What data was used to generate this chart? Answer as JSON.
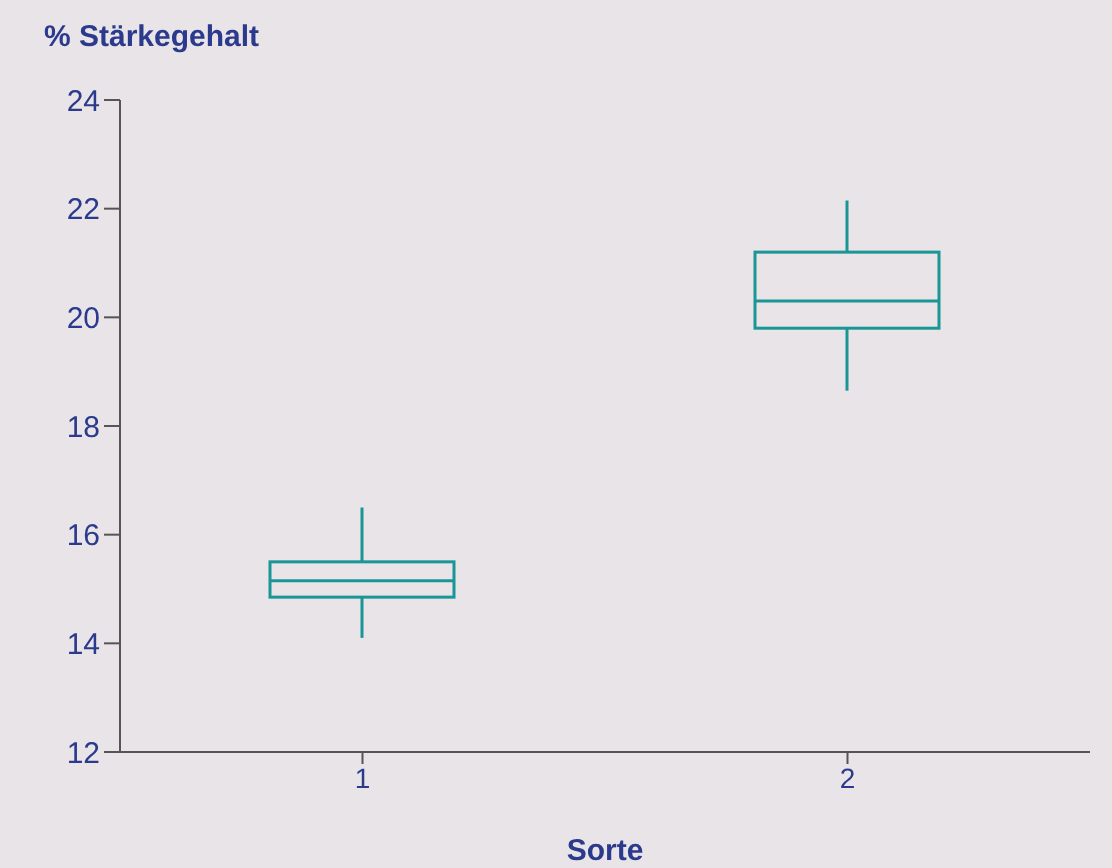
{
  "chart_data": {
    "type": "box",
    "title": "% Stärkegehalt",
    "xlabel": "Sorte",
    "categories": [
      "1",
      "2"
    ],
    "color": "#1a9696",
    "boxes": [
      {
        "low": 14.1,
        "q1": 14.85,
        "median": 15.15,
        "q3": 15.5,
        "high": 16.5
      },
      {
        "low": 18.65,
        "q1": 19.8,
        "median": 20.3,
        "q3": 21.2,
        "high": 22.15
      }
    ],
    "ylim": [
      12,
      24
    ],
    "yticks": [
      12,
      14,
      16,
      18,
      20,
      22,
      24
    ]
  }
}
